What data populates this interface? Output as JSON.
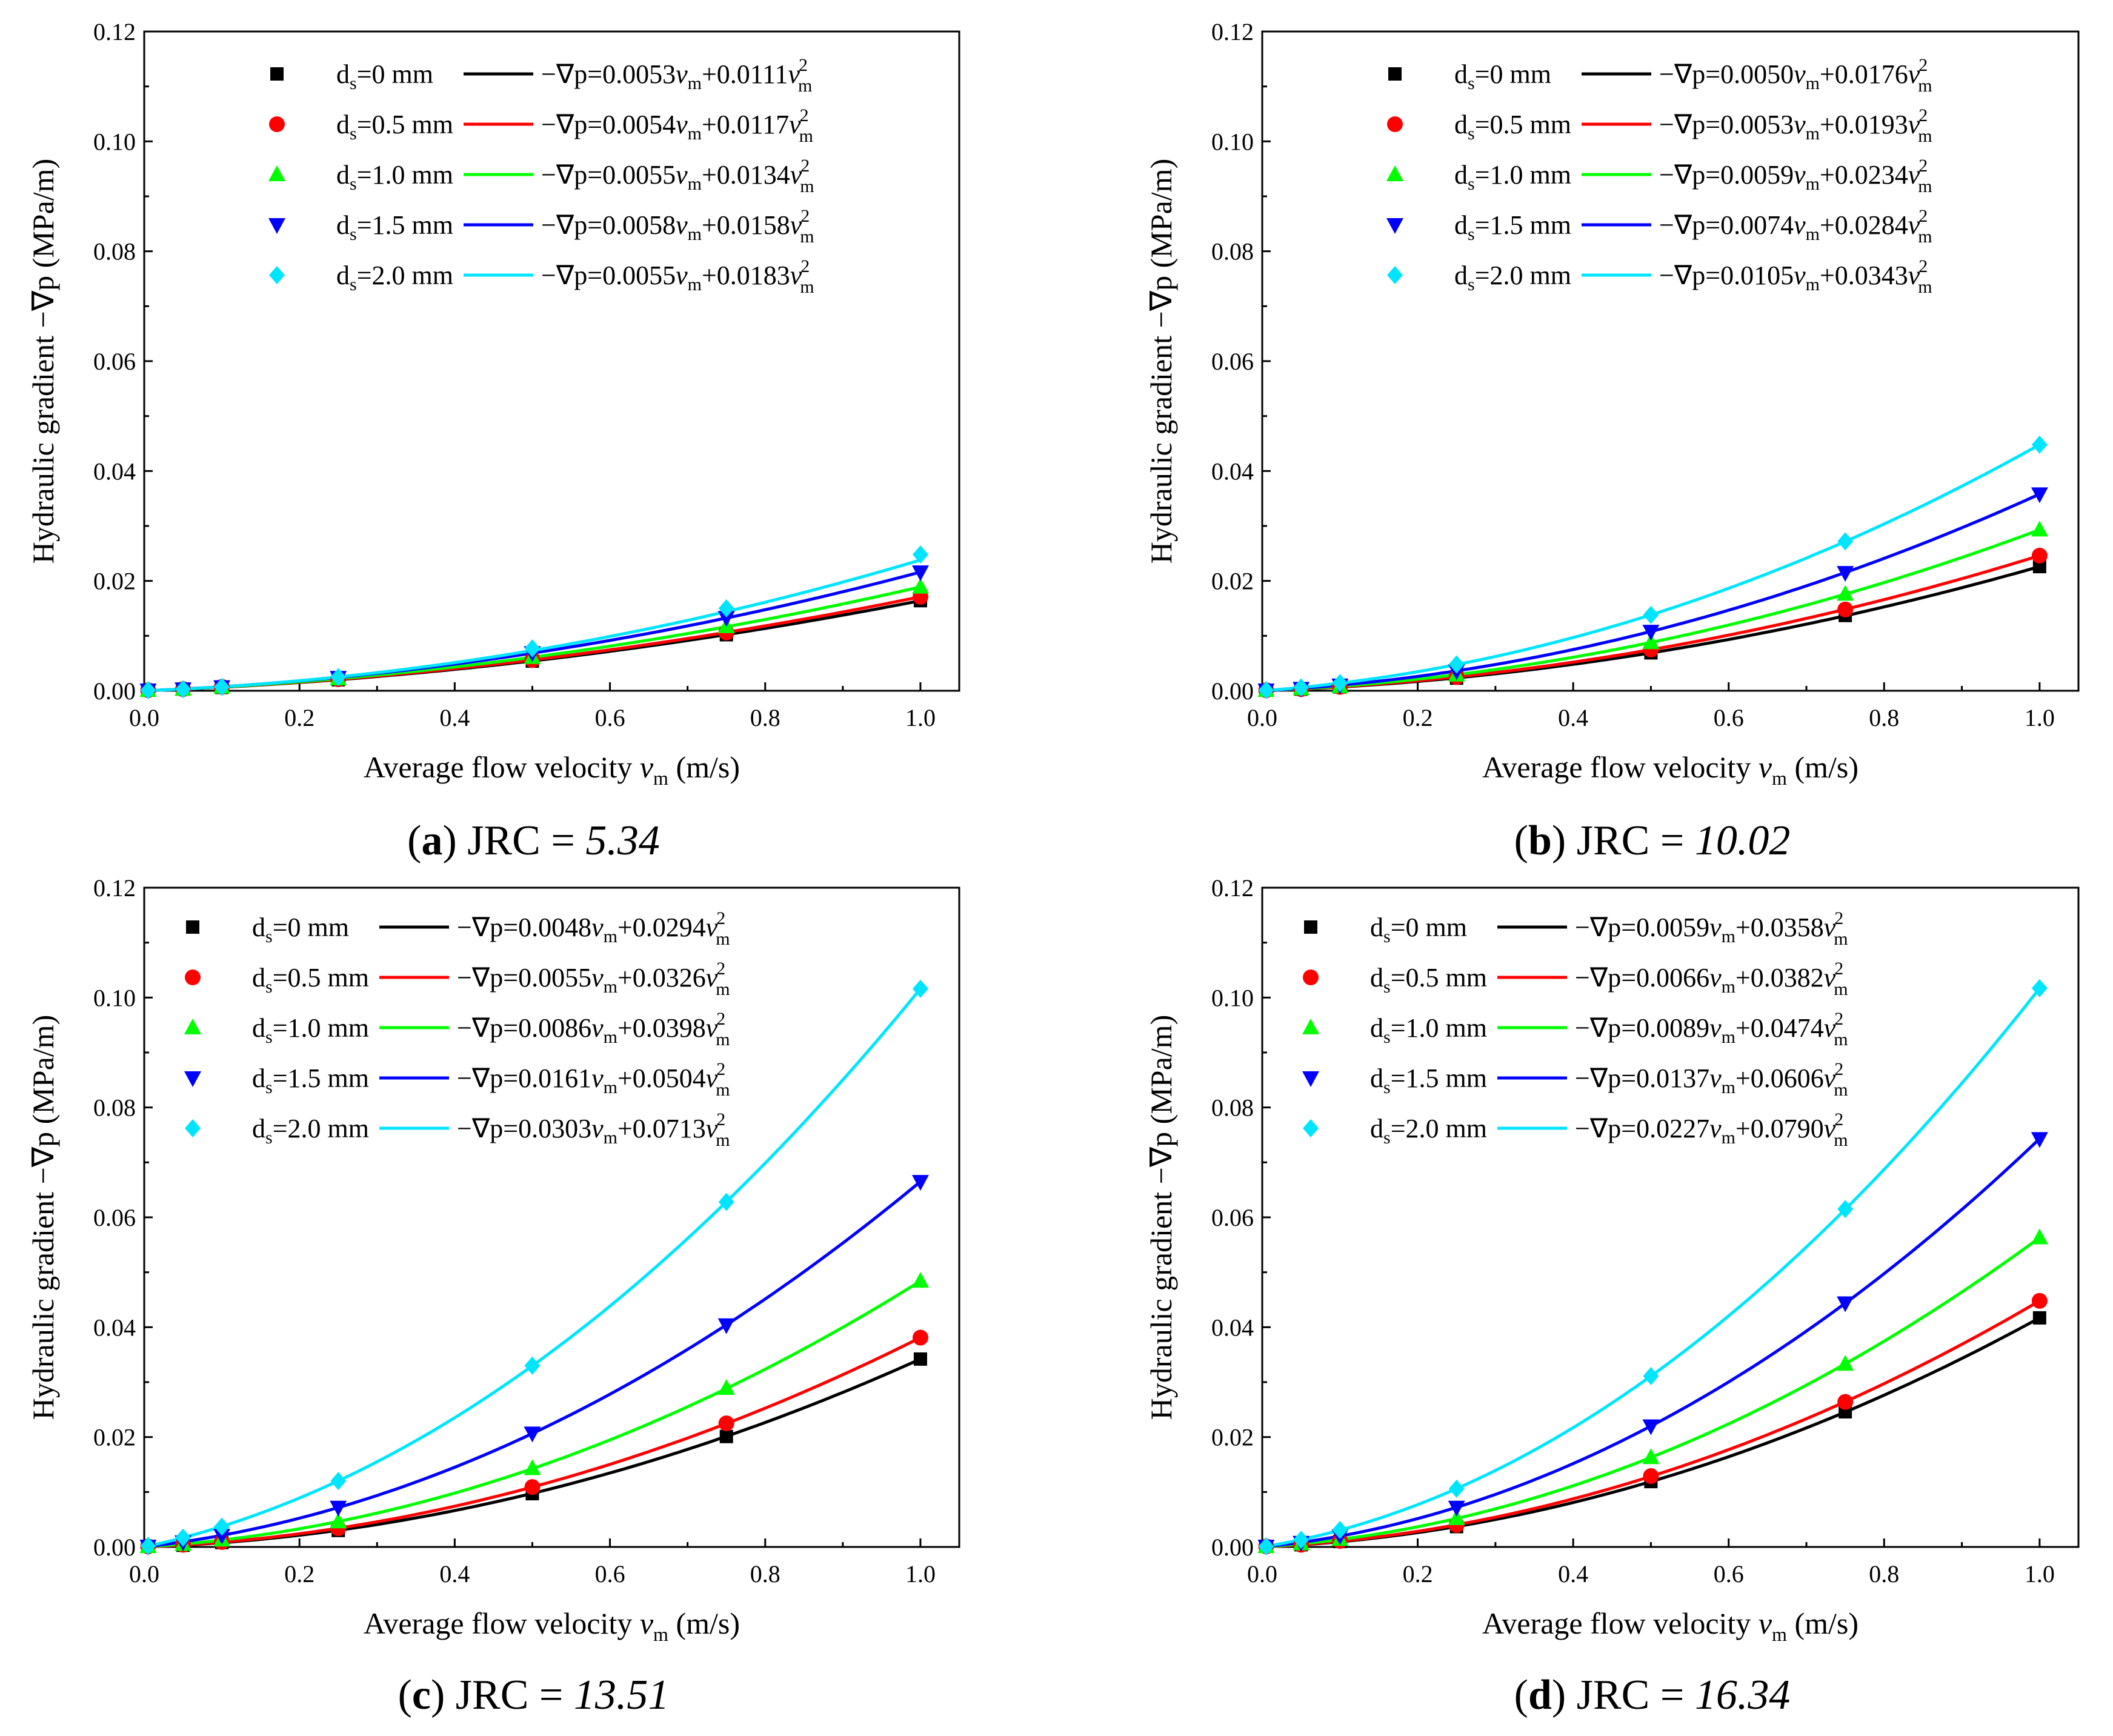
{
  "chart_data": [
    {
      "type": "scatter",
      "panel_id": "a",
      "caption": {
        "letter": "a",
        "prefix": "JRC =",
        "value": "5.34"
      },
      "xlabel": "Average flow velocity v_m (m/s)",
      "xlabel_parts": {
        "pre": "Average flow velocity ",
        "var": "v",
        "sub": "m",
        "post": " (m/s)"
      },
      "ylabel": "Hydraulic gradient −∇p (MPa/m)",
      "xlim": [
        0,
        1.05
      ],
      "ylim": [
        0,
        0.12
      ],
      "xticks": [
        "0.0",
        "0.2",
        "0.4",
        "0.6",
        "0.8",
        "1.0"
      ],
      "yticks": [
        "0.00",
        "0.02",
        "0.04",
        "0.06",
        "0.08",
        "0.10",
        "0.12"
      ],
      "x": [
        0.005,
        0.05,
        0.1,
        0.25,
        0.5,
        0.75,
        1.0
      ],
      "series": [
        {
          "name": "ds=0 mm",
          "label_main": "d",
          "label_sub": "s",
          "label_rest": "=0 mm",
          "marker": "square",
          "color": "#000000",
          "a": 0.0053,
          "b": 0.0111,
          "eq_a": "0.0053",
          "eq_b": "0.0111",
          "values": [
            0.0001,
            0.0003,
            0.0006,
            0.002,
            0.0054,
            0.0102,
            0.0164
          ]
        },
        {
          "name": "ds=0.5 mm",
          "label_main": "d",
          "label_sub": "s",
          "label_rest": "=0.5 mm",
          "marker": "circle",
          "color": "#ff0000",
          "a": 0.0054,
          "b": 0.0117,
          "eq_a": "0.0054",
          "eq_b": "0.0117",
          "values": [
            0.0001,
            0.0003,
            0.0007,
            0.0021,
            0.0056,
            0.0106,
            0.0171
          ]
        },
        {
          "name": "ds=1.0 mm",
          "label_main": "d",
          "label_sub": "s",
          "label_rest": "=1.0 mm",
          "marker": "triangle-up",
          "color": "#00ff00",
          "a": 0.0055,
          "b": 0.0134,
          "eq_a": "0.0055",
          "eq_b": "0.0134",
          "values": [
            0.0001,
            0.0003,
            0.0007,
            0.0022,
            0.0061,
            0.0117,
            0.0189
          ]
        },
        {
          "name": "ds=1.5 mm",
          "label_main": "d",
          "label_sub": "s",
          "label_rest": "=1.5 mm",
          "marker": "triangle-down",
          "color": "#0000ff",
          "a": 0.0058,
          "b": 0.0158,
          "eq_a": "0.0058",
          "eq_b": "0.0158",
          "values": [
            0.0001,
            0.0003,
            0.0007,
            0.0024,
            0.0069,
            0.0133,
            0.0216
          ]
        },
        {
          "name": "ds=2.0 mm",
          "label_main": "d",
          "label_sub": "s",
          "label_rest": "=2.0 mm",
          "marker": "diamond",
          "color": "#00e5ff",
          "a": 0.0055,
          "b": 0.0183,
          "eq_a": "0.0055",
          "eq_b": "0.0183",
          "values": [
            0.0001,
            0.0003,
            0.0007,
            0.0025,
            0.0077,
            0.015,
            0.0248
          ]
        }
      ]
    },
    {
      "type": "scatter",
      "panel_id": "b",
      "caption": {
        "letter": "b",
        "prefix": "JRC =",
        "value": "10.02"
      },
      "xlabel": "Average flow velocity v_m (m/s)",
      "xlabel_parts": {
        "pre": "Average flow velocity ",
        "var": "v",
        "sub": "m",
        "post": " (m/s)"
      },
      "ylabel": "Hydraulic gradient −∇p (MPa/m)",
      "xlim": [
        0,
        1.05
      ],
      "ylim": [
        0,
        0.12
      ],
      "xticks": [
        "0.0",
        "0.2",
        "0.4",
        "0.6",
        "0.8",
        "1.0"
      ],
      "yticks": [
        "0.00",
        "0.02",
        "0.04",
        "0.06",
        "0.08",
        "0.10",
        "0.12"
      ],
      "x": [
        0.005,
        0.05,
        0.1,
        0.25,
        0.5,
        0.75,
        1.0
      ],
      "series": [
        {
          "name": "ds=0 mm",
          "label_main": "d",
          "label_sub": "s",
          "label_rest": "=0 mm",
          "marker": "square",
          "color": "#000000",
          "a": 0.005,
          "b": 0.0176,
          "eq_a": "0.0050",
          "eq_b": "0.0176",
          "values": [
            0.0001,
            0.0003,
            0.0007,
            0.0023,
            0.0069,
            0.0137,
            0.0226
          ]
        },
        {
          "name": "ds=0.5 mm",
          "label_main": "d",
          "label_sub": "s",
          "label_rest": "=0.5 mm",
          "marker": "circle",
          "color": "#ff0000",
          "a": 0.0053,
          "b": 0.0193,
          "eq_a": "0.0053",
          "eq_b": "0.0193",
          "values": [
            0.0001,
            0.0003,
            0.0007,
            0.0025,
            0.0075,
            0.0148,
            0.0246
          ]
        },
        {
          "name": "ds=1.0 mm",
          "label_main": "d",
          "label_sub": "s",
          "label_rest": "=1.0 mm",
          "marker": "triangle-up",
          "color": "#00ff00",
          "a": 0.0059,
          "b": 0.0234,
          "eq_a": "0.0059",
          "eq_b": "0.0234",
          "values": [
            0.0001,
            0.0004,
            0.0008,
            0.0029,
            0.0088,
            0.0176,
            0.0293
          ]
        },
        {
          "name": "ds=1.5 mm",
          "label_main": "d",
          "label_sub": "s",
          "label_rest": "=1.5 mm",
          "marker": "triangle-down",
          "color": "#0000ff",
          "a": 0.0074,
          "b": 0.0284,
          "eq_a": "0.0074",
          "eq_b": "0.0284",
          "values": [
            0.0001,
            0.0004,
            0.001,
            0.0036,
            0.0108,
            0.0215,
            0.0358
          ]
        },
        {
          "name": "ds=2.0 mm",
          "label_main": "d",
          "label_sub": "s",
          "label_rest": "=2.0 mm",
          "marker": "diamond",
          "color": "#00e5ff",
          "a": 0.0105,
          "b": 0.0343,
          "eq_a": "0.0105",
          "eq_b": "0.0343",
          "values": [
            0.0001,
            0.0006,
            0.0014,
            0.0048,
            0.0138,
            0.0272,
            0.0448
          ]
        }
      ]
    },
    {
      "type": "scatter",
      "panel_id": "c",
      "caption": {
        "letter": "c",
        "prefix": "JRC =",
        "value": "13.51"
      },
      "xlabel": "Average flow velocity v_m (m/s)",
      "xlabel_parts": {
        "pre": "Average flow velocity ",
        "var": "v",
        "sub": "m",
        "post": " (m/s)"
      },
      "ylabel": "Hydraulic gradient −∇p (MPa/m)",
      "xlim": [
        0,
        1.05
      ],
      "ylim": [
        0,
        0.12
      ],
      "xticks": [
        "0.0",
        "0.2",
        "0.4",
        "0.6",
        "0.8",
        "1.0"
      ],
      "yticks": [
        "0.00",
        "0.02",
        "0.04",
        "0.06",
        "0.08",
        "0.10",
        "0.12"
      ],
      "x": [
        0.005,
        0.05,
        0.1,
        0.25,
        0.5,
        0.75,
        1.0
      ],
      "series": [
        {
          "name": "ds=0 mm",
          "label_main": "d",
          "label_sub": "s",
          "label_rest": "=0 mm",
          "marker": "square",
          "color": "#000000",
          "a": 0.0048,
          "b": 0.0294,
          "eq_a": "0.0048",
          "eq_b": "0.0294",
          "values": [
            0.0001,
            0.0003,
            0.0008,
            0.003,
            0.0097,
            0.0201,
            0.0342
          ]
        },
        {
          "name": "ds=0.5 mm",
          "label_main": "d",
          "label_sub": "s",
          "label_rest": "=0.5 mm",
          "marker": "circle",
          "color": "#ff0000",
          "a": 0.0055,
          "b": 0.0326,
          "eq_a": "0.0055",
          "eq_b": "0.0326",
          "values": [
            0.0001,
            0.0004,
            0.0009,
            0.0034,
            0.0109,
            0.0225,
            0.0381
          ]
        },
        {
          "name": "ds=1.0 mm",
          "label_main": "d",
          "label_sub": "s",
          "label_rest": "=1.0 mm",
          "marker": "triangle-up",
          "color": "#00ff00",
          "a": 0.0086,
          "b": 0.0398,
          "eq_a": "0.0086",
          "eq_b": "0.0398",
          "values": [
            0.0001,
            0.0005,
            0.0013,
            0.0046,
            0.0143,
            0.0289,
            0.0484
          ]
        },
        {
          "name": "ds=1.5 mm",
          "label_main": "d",
          "label_sub": "s",
          "label_rest": "=1.5 mm",
          "marker": "triangle-down",
          "color": "#0000ff",
          "a": 0.0161,
          "b": 0.0504,
          "eq_a": "0.0161",
          "eq_b": "0.0504",
          "values": [
            0.0001,
            0.0009,
            0.0021,
            0.0072,
            0.0207,
            0.0404,
            0.0665
          ]
        },
        {
          "name": "ds=2.0 mm",
          "label_main": "d",
          "label_sub": "s",
          "label_rest": "=2.0 mm",
          "marker": "diamond",
          "color": "#00e5ff",
          "a": 0.0303,
          "b": 0.0713,
          "eq_a": "0.0303",
          "eq_b": "0.0713",
          "values": [
            0.0002,
            0.0017,
            0.0037,
            0.012,
            0.033,
            0.0628,
            0.1016
          ]
        }
      ]
    },
    {
      "type": "scatter",
      "panel_id": "d",
      "caption": {
        "letter": "d",
        "prefix": "JRC =",
        "value": "16.34"
      },
      "xlabel": "Average flow velocity v_m (m/s)",
      "xlabel_parts": {
        "pre": "Average flow velocity ",
        "var": "v",
        "sub": "m",
        "post": " (m/s)"
      },
      "ylabel": "Hydraulic gradient −∇p (MPa/m)",
      "xlim": [
        0,
        1.05
      ],
      "ylim": [
        0,
        0.12
      ],
      "xticks": [
        "0.0",
        "0.2",
        "0.4",
        "0.6",
        "0.8",
        "1.0"
      ],
      "yticks": [
        "0.00",
        "0.02",
        "0.04",
        "0.06",
        "0.08",
        "0.10",
        "0.12"
      ],
      "x": [
        0.005,
        0.05,
        0.1,
        0.25,
        0.5,
        0.75,
        1.0
      ],
      "series": [
        {
          "name": "ds=0 mm",
          "label_main": "d",
          "label_sub": "s",
          "label_rest": "=0 mm",
          "marker": "square",
          "color": "#000000",
          "a": 0.0059,
          "b": 0.0358,
          "eq_a": "0.0059",
          "eq_b": "0.0358",
          "values": [
            0.0001,
            0.0004,
            0.001,
            0.0037,
            0.0119,
            0.0246,
            0.0417
          ]
        },
        {
          "name": "ds=0.5 mm",
          "label_main": "d",
          "label_sub": "s",
          "label_rest": "=0.5 mm",
          "marker": "circle",
          "color": "#ff0000",
          "a": 0.0066,
          "b": 0.0382,
          "eq_a": "0.0066",
          "eq_b": "0.0382",
          "values": [
            0.0001,
            0.0004,
            0.0011,
            0.004,
            0.0129,
            0.0264,
            0.0448
          ]
        },
        {
          "name": "ds=1.0 mm",
          "label_main": "d",
          "label_sub": "s",
          "label_rest": "=1.0 mm",
          "marker": "triangle-up",
          "color": "#00ff00",
          "a": 0.0089,
          "b": 0.0474,
          "eq_a": "0.0089",
          "eq_b": "0.0474",
          "values": [
            0.0001,
            0.0006,
            0.0014,
            0.0052,
            0.0163,
            0.0333,
            0.0563
          ]
        },
        {
          "name": "ds=1.5 mm",
          "label_main": "d",
          "label_sub": "s",
          "label_rest": "=1.5 mm",
          "marker": "triangle-down",
          "color": "#0000ff",
          "a": 0.0137,
          "b": 0.0606,
          "eq_a": "0.0137",
          "eq_b": "0.0606",
          "values": [
            0.0001,
            0.0008,
            0.002,
            0.0072,
            0.022,
            0.0444,
            0.0743
          ]
        },
        {
          "name": "ds=2.0 mm",
          "label_main": "d",
          "label_sub": "s",
          "label_rest": "=2.0 mm",
          "marker": "diamond",
          "color": "#00e5ff",
          "a": 0.0227,
          "b": 0.079,
          "eq_a": "0.0227",
          "eq_b": "0.0790",
          "values": [
            0.0001,
            0.0013,
            0.0031,
            0.0106,
            0.0311,
            0.0615,
            0.1017
          ]
        }
      ]
    }
  ]
}
